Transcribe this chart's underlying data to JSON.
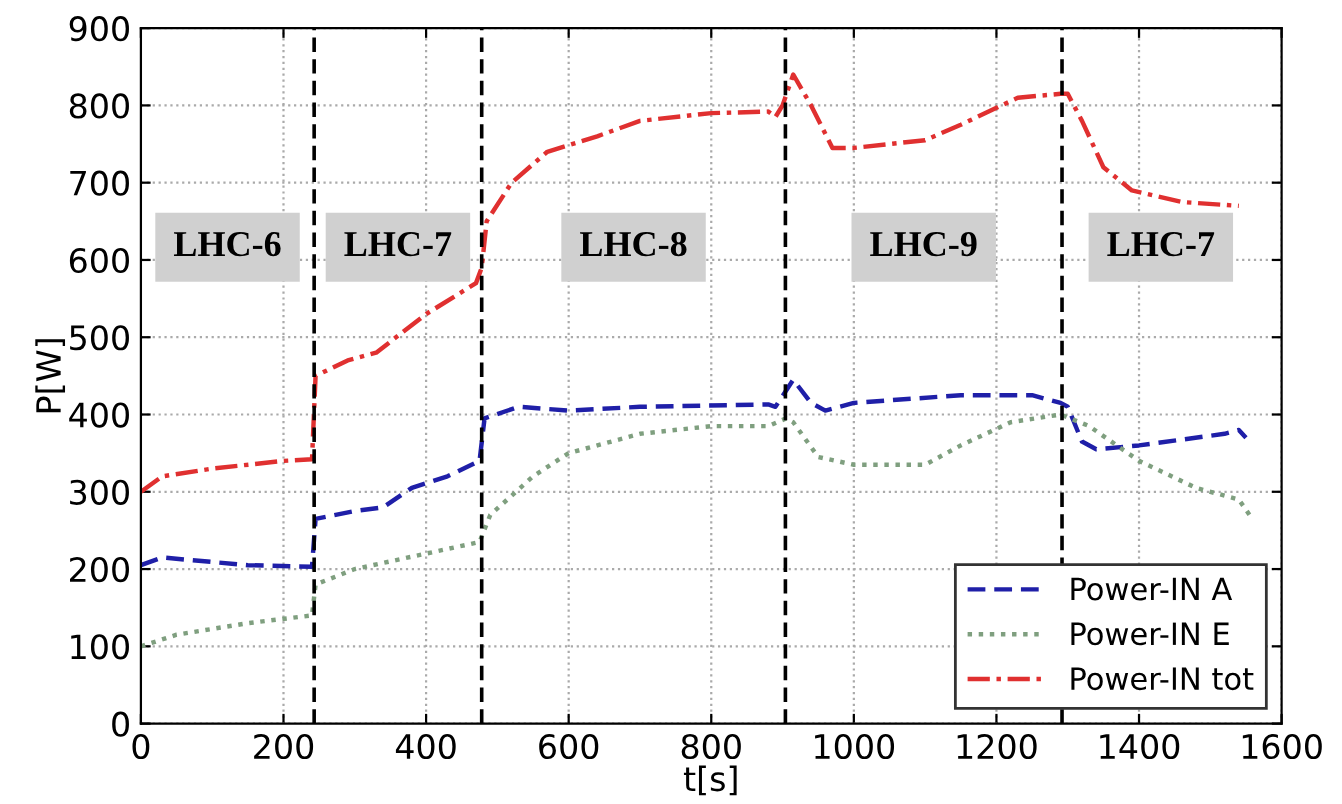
{
  "chart_data": {
    "type": "line",
    "xlabel": "t[s]",
    "ylabel": "P[W]",
    "xlim": [
      0,
      1600
    ],
    "ylim": [
      0,
      900
    ],
    "xticks": [
      0,
      200,
      400,
      600,
      800,
      1000,
      1200,
      1400,
      1600
    ],
    "yticks": [
      0,
      100,
      200,
      300,
      400,
      500,
      600,
      700,
      800,
      900
    ],
    "grid": true,
    "legend": "bottom right",
    "marker": "none",
    "series": [
      {
        "name": "Power-IN A",
        "color": "#1f1fa8",
        "line_style": "dashed",
        "x": [
          0,
          30,
          150,
          240,
          245,
          300,
          340,
          380,
          430,
          475,
          482,
          530,
          600,
          700,
          880,
          890,
          915,
          940,
          960,
          1000,
          1150,
          1250,
          1290,
          1300,
          1320,
          1340,
          1400,
          1520,
          1540,
          1550
        ],
        "values": [
          205,
          215,
          205,
          203,
          265,
          275,
          280,
          305,
          320,
          340,
          395,
          410,
          405,
          410,
          413,
          410,
          445,
          415,
          405,
          415,
          425,
          425,
          415,
          410,
          365,
          355,
          360,
          375,
          380,
          370
        ]
      },
      {
        "name": "Power-IN E",
        "color": "#7f9f7f",
        "line_style": "dotted",
        "x": [
          0,
          50,
          150,
          240,
          245,
          300,
          400,
          475,
          490,
          550,
          600,
          700,
          800,
          880,
          905,
          915,
          950,
          1000,
          1100,
          1150,
          1220,
          1290,
          1330,
          1400,
          1480,
          1540,
          1555
        ],
        "values": [
          100,
          115,
          130,
          140,
          180,
          200,
          220,
          235,
          270,
          320,
          350,
          375,
          385,
          385,
          395,
          390,
          345,
          335,
          335,
          360,
          390,
          400,
          385,
          340,
          305,
          290,
          270
        ]
      },
      {
        "name": "Power-IN tot",
        "color": "#e03030",
        "line_style": "dashdot",
        "x": [
          0,
          30,
          100,
          200,
          240,
          245,
          290,
          330,
          400,
          470,
          478,
          485,
          520,
          570,
          640,
          700,
          800,
          880,
          890,
          900,
          915,
          940,
          970,
          1000,
          1100,
          1150,
          1230,
          1290,
          1300,
          1320,
          1350,
          1390,
          1460,
          1540
        ],
        "values": [
          300,
          320,
          330,
          340,
          342,
          450,
          470,
          480,
          530,
          570,
          590,
          650,
          700,
          740,
          760,
          780,
          790,
          792,
          785,
          800,
          840,
          800,
          745,
          745,
          755,
          775,
          810,
          815,
          815,
          780,
          720,
          690,
          675,
          670
        ]
      }
    ],
    "ref_lines": [
      {
        "axis": "x",
        "value": 243,
        "label": null,
        "color": "#000000",
        "line_style": "dashed"
      },
      {
        "axis": "x",
        "value": 478,
        "label": null,
        "color": "#000000",
        "line_style": "dashed"
      },
      {
        "axis": "x",
        "value": 904,
        "label": null,
        "color": "#000000",
        "line_style": "dashed"
      },
      {
        "axis": "x",
        "value": 1292,
        "label": null,
        "color": "#000000",
        "line_style": "dashed"
      }
    ],
    "annotations": [
      "LHC-6",
      "LHC-7",
      "LHC-8",
      "LHC-9",
      "LHC-7"
    ]
  }
}
